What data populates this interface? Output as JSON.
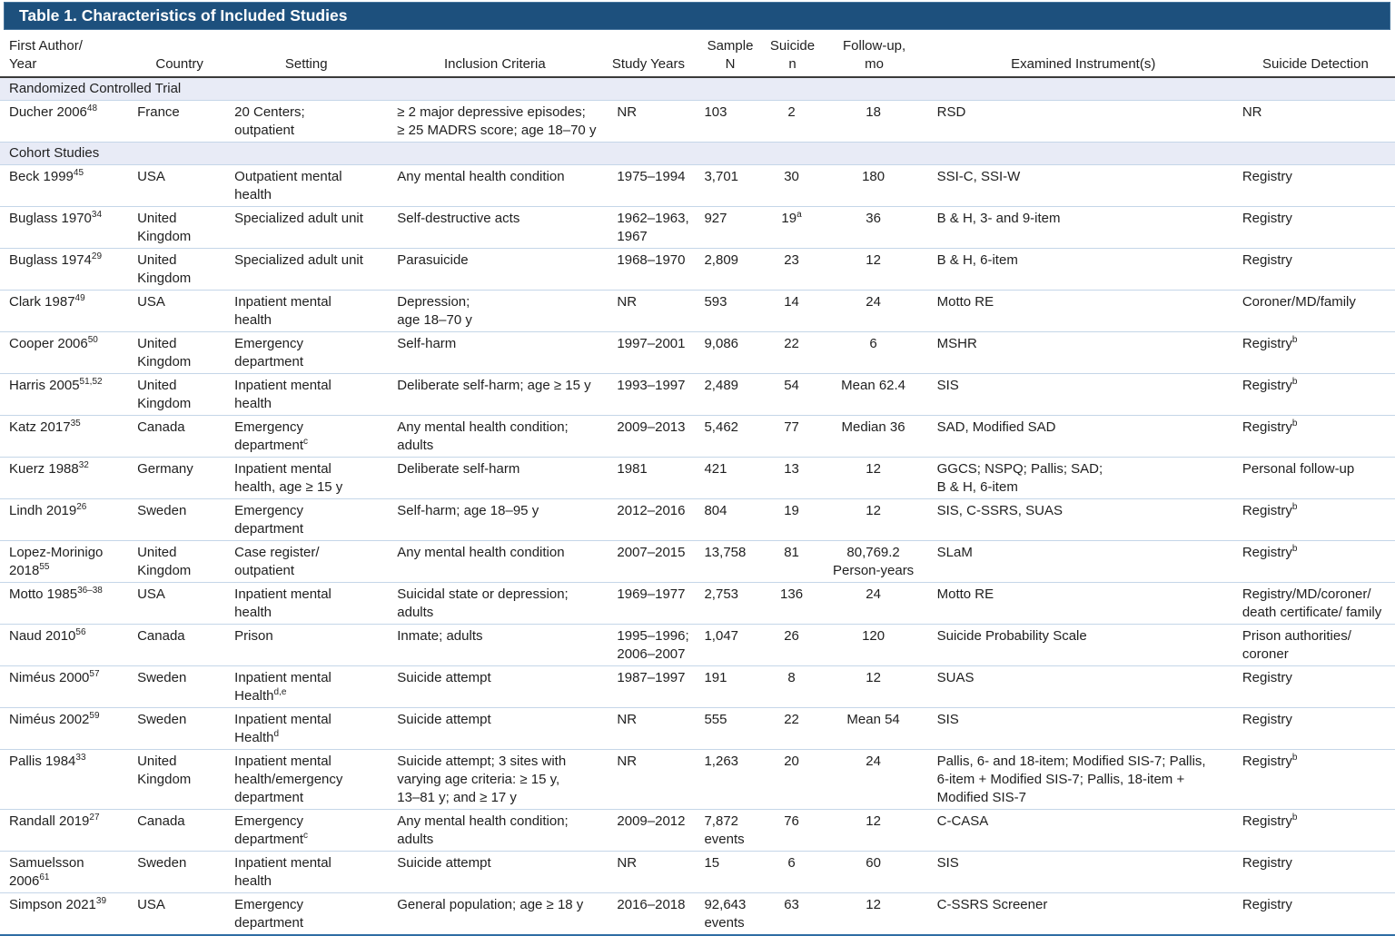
{
  "table": {
    "title": "Table 1. Characteristics of Included Studies",
    "columns": [
      {
        "key": "author",
        "label": "First Author/\nYear"
      },
      {
        "key": "country",
        "label": "Country"
      },
      {
        "key": "setting",
        "label": "Setting"
      },
      {
        "key": "inclusion",
        "label": "Inclusion Criteria"
      },
      {
        "key": "years",
        "label": "Study Years"
      },
      {
        "key": "sample",
        "label": "Sample\nN"
      },
      {
        "key": "suicide",
        "label": "Suicide\nn"
      },
      {
        "key": "followup",
        "label": "Follow-up,\nmo"
      },
      {
        "key": "instruments",
        "label": "Examined Instrument(s)"
      },
      {
        "key": "detection",
        "label": "Suicide Detection"
      }
    ],
    "sections": [
      {
        "label": "Randomized Controlled Trial",
        "rows": [
          [
            "Ducher 2006^{48}",
            "France",
            "20 Centers;\noutpatient",
            "≥ 2 major depressive episodes;\n≥ 25 MADRS score; age 18–70 y",
            "NR",
            "103",
            "2",
            "18",
            "RSD",
            "NR"
          ]
        ]
      },
      {
        "label": "Cohort Studies",
        "rows": [
          [
            "Beck 1999^{45}",
            "USA",
            "Outpatient mental\nhealth",
            "Any mental health condition",
            "1975–1994",
            "3,701",
            "30",
            "180",
            "SSI-C, SSI-W",
            "Registry"
          ],
          [
            "Buglass 1970^{34}",
            "United\nKingdom",
            "Specialized adult unit",
            "Self-destructive acts",
            "1962–1963,\n1967",
            "927",
            "19^{a}",
            "36",
            "B & H, 3- and 9-item",
            "Registry"
          ],
          [
            "Buglass 1974^{29}",
            "United\nKingdom",
            "Specialized adult unit",
            "Parasuicide",
            "1968–1970",
            "2,809",
            "23",
            "12",
            "B & H, 6-item",
            "Registry"
          ],
          [
            "Clark 1987^{49}",
            "USA",
            "Inpatient mental\nhealth",
            "Depression;\nage 18–70 y",
            "NR",
            "593",
            "14",
            "24",
            "Motto RE",
            "Coroner/MD/family"
          ],
          [
            "Cooper 2006^{50}",
            "United\nKingdom",
            "Emergency\ndepartment",
            "Self-harm",
            "1997–2001",
            "9,086",
            "22",
            "6",
            "MSHR",
            "Registry^{b}"
          ],
          [
            "Harris 2005^{51,52}",
            "United\nKingdom",
            "Inpatient mental\nhealth",
            "Deliberate self-harm; age ≥ 15 y",
            "1993–1997",
            "2,489",
            "54",
            "Mean 62.4",
            "SIS",
            "Registry^{b}"
          ],
          [
            "Katz 2017^{35}",
            "Canada",
            "Emergency\ndepartment^{c}",
            "Any mental health condition;\nadults",
            "2009–2013",
            "5,462",
            "77",
            "Median 36",
            "SAD, Modified SAD",
            "Registry^{b}"
          ],
          [
            "Kuerz 1988^{32}",
            "Germany",
            "Inpatient mental\nhealth, age ≥ 15 y",
            "Deliberate self-harm",
            "1981",
            "421",
            "13",
            "12",
            "GGCS; NSPQ; Pallis; SAD;\nB & H, 6-item",
            "Personal follow-up"
          ],
          [
            "Lindh 2019^{26}",
            "Sweden",
            "Emergency\ndepartment",
            "Self-harm; age 18–95 y",
            "2012–2016",
            "804",
            "19",
            "12",
            "SIS, C-SSRS, SUAS",
            "Registry^{b}"
          ],
          [
            "Lopez-Morinigo\n2018^{55}",
            "United\nKingdom",
            "Case register/\noutpatient",
            "Any mental health condition",
            "2007–2015",
            "13,758",
            "81",
            "80,769.2\nPerson-years",
            "SLaM",
            "Registry^{b}"
          ],
          [
            "Motto 1985^{36–38}",
            "USA",
            "Inpatient mental\nhealth",
            "Suicidal state or depression;\nadults",
            "1969–1977",
            "2,753",
            "136",
            "24",
            "Motto RE",
            "Registry/MD/coroner/\ndeath certificate/ family"
          ],
          [
            "Naud 2010^{56}",
            "Canada",
            "Prison",
            "Inmate; adults",
            "1995–1996;\n2006–2007",
            "1,047",
            "26",
            "120",
            "Suicide Probability Scale",
            "Prison authorities/\ncoroner"
          ],
          [
            "Niméus 2000^{57}",
            "Sweden",
            "Inpatient mental\nHealth^{d,e}",
            "Suicide attempt",
            "1987–1997",
            "191",
            "8",
            "12",
            "SUAS",
            "Registry"
          ],
          [
            "Niméus 2002^{59}",
            "Sweden",
            "Inpatient mental\nHealth^{d}",
            "Suicide attempt",
            "NR",
            "555",
            "22",
            "Mean 54",
            "SIS",
            "Registry"
          ],
          [
            "Pallis 1984^{33}",
            "United\nKingdom",
            "Inpatient mental\nhealth/emergency\ndepartment",
            "Suicide attempt; 3 sites with\nvarying age criteria: ≥ 15 y,\n13–81 y; and ≥ 17 y",
            "NR",
            "1,263",
            "20",
            "24",
            "Pallis, 6- and 18-item; Modified SIS-7; Pallis,\n6-item + Modified SIS-7; Pallis, 18-item +\nModified SIS-7",
            "Registry^{b}"
          ],
          [
            "Randall 2019^{27}",
            "Canada",
            "Emergency\ndepartment^{c}",
            "Any mental health condition;\nadults",
            "2009–2012",
            "7,872\nevents",
            "76",
            "12",
            "C-CASA",
            "Registry^{b}"
          ],
          [
            "Samuelsson\n2006^{61}",
            "Sweden",
            "Inpatient mental\nhealth",
            "Suicide attempt",
            "NR",
            "15",
            "6",
            "60",
            "SIS",
            "Registry"
          ],
          [
            "Simpson 2021^{39}",
            "USA",
            "Emergency\ndepartment",
            "General population; age ≥ 18 y",
            "2016–2018",
            "92,643\nevents",
            "63",
            "12",
            "C-SSRS Screener",
            "Registry"
          ]
        ]
      }
    ]
  },
  "colors": {
    "title_bar": "#1d507d",
    "title_text": "#ffffff",
    "section_band": "#e8ebf6",
    "row_divider": "#c5d6e8",
    "header_rule": "#3a3a3a",
    "bottom_rule": "#2e6da4",
    "body_text": "#1f1f1f"
  }
}
